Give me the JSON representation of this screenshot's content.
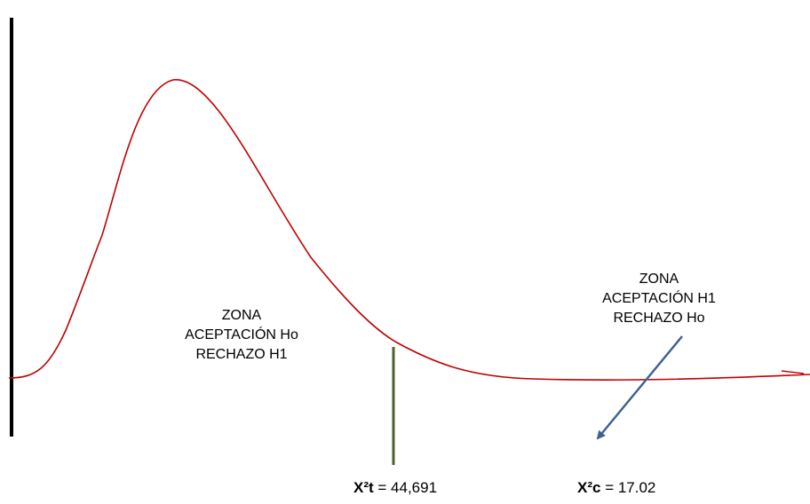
{
  "zones": {
    "acceptance_ho": {
      "line1": "ZONA",
      "line2": "ACEPTACIÓN Ho",
      "line3": "RECHAZO H1"
    },
    "acceptance_h1": {
      "line1": "ZONA",
      "line2": "ACEPTACIÓN H1",
      "line3": "RECHAZO Ho"
    }
  },
  "statistics": {
    "tabulated": {
      "symbol": "X²t",
      "separator": " = ",
      "value": "44,691"
    },
    "calculated": {
      "symbol": "X²c",
      "separator": " = ",
      "value": "17.02"
    }
  },
  "colors": {
    "curve": "#c00000",
    "critical_line": "#4f6228",
    "arrow": "#3f6193",
    "axis": "#000000"
  }
}
